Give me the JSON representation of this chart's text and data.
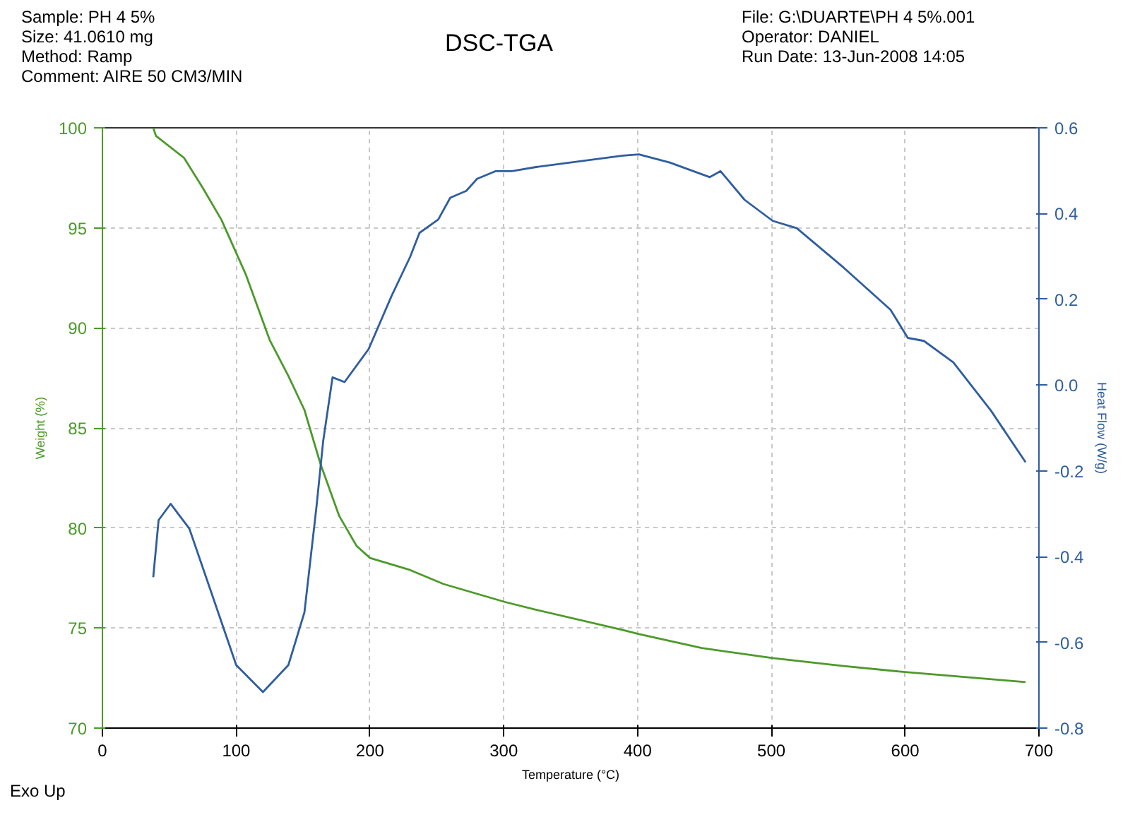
{
  "chart_data": {
    "type": "line",
    "title": "DSC-TGA",
    "xlabel": "Temperature (°C)",
    "ylabel": "Weight (%)",
    "y2label": "Heat Flow (W/g)",
    "annotations": [
      "Sample: PH 4  5%",
      "Size:  41.0610 mg",
      "Method: Ramp",
      "Comment: AIRE 50 CM3/MIN",
      "File: G:\\DUARTE\\PH 4  5%.001",
      "Operator: DANIEL",
      "Run Date: 13-Jun-2008 14:05",
      "Exo Up"
    ],
    "xlim": [
      0,
      700
    ],
    "xticks": [
      0,
      100,
      200,
      300,
      400,
      500,
      600,
      700
    ],
    "ylim": [
      70,
      100
    ],
    "yticks": [
      70,
      75,
      80,
      85,
      90,
      95,
      100
    ],
    "y2lim": [
      -0.8,
      0.6
    ],
    "y2ticks": [
      {
        "value": -0.8,
        "label": "-0.8"
      },
      {
        "value": -0.6,
        "label": "-0.6"
      },
      {
        "value": -0.4,
        "label": "-0.4"
      },
      {
        "value": -0.2,
        "label": "-0.2"
      },
      {
        "value": 0,
        "label": "0.0"
      },
      {
        "value": 0.2,
        "label": "0.2"
      },
      {
        "value": 0.4,
        "label": "0.4"
      },
      {
        "value": 0.6,
        "label": "0.6"
      }
    ],
    "grid": true,
    "line_style": "solid",
    "series": [
      {
        "color": "#4c9a2a",
        "x": [
          38,
          40,
          61,
          75,
          89,
          107,
          125,
          139,
          151,
          163,
          177,
          190,
          200,
          230,
          255,
          301,
          325,
          389,
          401,
          448,
          501,
          554,
          600,
          690
        ],
        "values": [
          100,
          99.6,
          98.5,
          97.0,
          95.4,
          92.7,
          89.4,
          87.6,
          85.9,
          83.2,
          80.6,
          79.1,
          78.5,
          77.9,
          77.2,
          76.3,
          75.9,
          74.9,
          74.7,
          74.0,
          73.5,
          73.1,
          72.8,
          72.3
        ]
      },
      {
        "color": "#2f5da0",
        "axis": "y2",
        "x": [
          38,
          42,
          51,
          65,
          82,
          100,
          120,
          139,
          151,
          160,
          165,
          172,
          181,
          199,
          216,
          230,
          237,
          251,
          260,
          272,
          280,
          294,
          306,
          325,
          389,
          401,
          424,
          454,
          462,
          480,
          501,
          519,
          554,
          589,
          602,
          614,
          636,
          664,
          690
        ],
        "values": [
          -0.448,
          -0.315,
          -0.277,
          -0.335,
          -0.489,
          -0.653,
          -0.716,
          -0.653,
          -0.53,
          -0.284,
          -0.131,
          0.018,
          0.007,
          0.084,
          0.207,
          0.299,
          0.355,
          0.386,
          0.437,
          0.453,
          0.481,
          0.499,
          0.499,
          0.509,
          0.535,
          0.538,
          0.519,
          0.485,
          0.499,
          0.432,
          0.383,
          0.366,
          0.274,
          0.176,
          0.11,
          0.103,
          0.053,
          -0.059,
          -0.18
        ]
      }
    ]
  }
}
